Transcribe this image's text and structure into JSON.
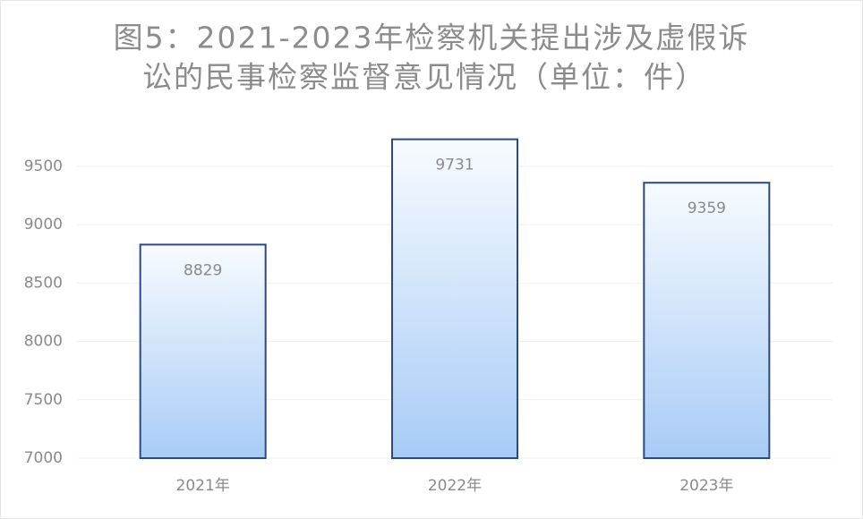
{
  "chart_data": {
    "type": "bar",
    "title": [
      "图5：2021-2023年检察机关提出涉及虚假诉",
      "讼的民事检察监督意见情况（单位：件）"
    ],
    "categories": [
      "2021年",
      "2022年",
      "2023年"
    ],
    "values": [
      8829,
      9731,
      9359
    ],
    "color": "#2c4a80",
    "ylim": [
      7000,
      9800
    ],
    "yticks": [
      7000,
      7500,
      8000,
      8500,
      9000,
      9500
    ],
    "grid": true
  }
}
